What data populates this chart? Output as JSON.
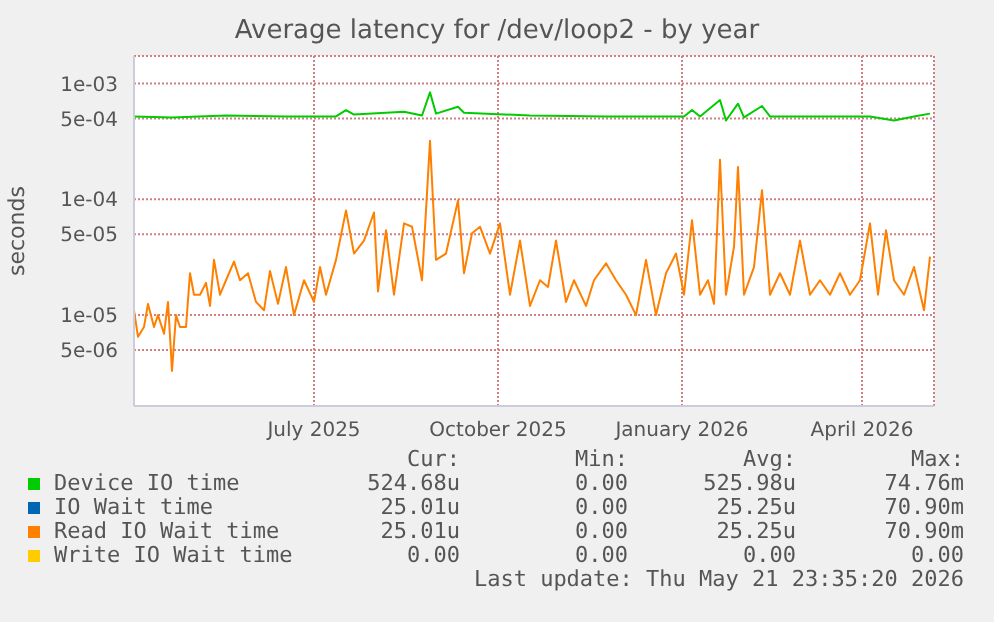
{
  "chart_data": {
    "type": "line",
    "title": "Average latency for /dev/loop2 - by year",
    "ylabel": "seconds",
    "log": true,
    "grid": true,
    "legend": "bottom",
    "marker": "none",
    "line_style": "solid",
    "xlim": [
      "2025-04-17",
      "2026-05-22"
    ],
    "xticks": [
      {
        "value": "2025-07-16",
        "label": "July 2025"
      },
      {
        "value": "2025-10-16",
        "label": "October 2025"
      },
      {
        "value": "2026-01-16",
        "label": "January 2026"
      },
      {
        "value": "2026-04-16",
        "label": "April 2026"
      }
    ],
    "ylim": [
      1.64e-06,
      0.00173
    ],
    "yticks": [
      {
        "value": 5e-06,
        "label": "5e-06"
      },
      {
        "value": 1e-05,
        "label": "1e-05"
      },
      {
        "value": 5e-05,
        "label": "5e-05"
      },
      {
        "value": 0.0001,
        "label": "1e-04"
      },
      {
        "value": 0.0005,
        "label": "5e-04"
      },
      {
        "value": 0.001,
        "label": "1e-03"
      }
    ],
    "series": [
      {
        "name": "Device IO time",
        "color": "#00cc00",
        "x": [
          "2025-04-17",
          "2025-05-06",
          "2025-06-02",
          "2025-07-02",
          "2025-07-27",
          "2025-08-01",
          "2025-08-05",
          "2025-08-30",
          "2025-09-08",
          "2025-09-12",
          "2025-09-15",
          "2025-09-26",
          "2025-09-29",
          "2025-11-01",
          "2025-12-09",
          "2026-01-17",
          "2026-01-21",
          "2026-01-25",
          "2026-02-04",
          "2026-02-07",
          "2026-02-13",
          "2026-02-16",
          "2026-02-25",
          "2026-03-01",
          "2026-04-20",
          "2026-05-02",
          "2026-05-12",
          "2026-05-20"
        ],
        "values": [
          0.00052,
          0.00051,
          0.00053,
          0.00052,
          0.00052,
          0.00059,
          0.00054,
          0.00057,
          0.00053,
          0.00084,
          0.00055,
          0.00063,
          0.00056,
          0.00053,
          0.00052,
          0.00052,
          0.00059,
          0.00052,
          0.00072,
          0.00048,
          0.00067,
          0.00051,
          0.00064,
          0.00052,
          0.00052,
          0.00048,
          0.00052,
          0.00055
        ]
      },
      {
        "name": "IO Wait time",
        "color": "#0066b3"
      },
      {
        "name": "Read IO Wait time",
        "color": "#ff8000",
        "x": [
          "2025-04-17",
          "2025-04-19",
          "2025-04-22",
          "2025-04-24",
          "2025-04-27",
          "2025-04-29",
          "2025-05-02",
          "2025-05-04",
          "2025-05-06",
          "2025-05-08",
          "2025-05-10",
          "2025-05-13",
          "2025-05-15",
          "2025-05-17",
          "2025-05-20",
          "2025-05-23",
          "2025-05-25",
          "2025-05-27",
          "2025-05-30",
          "2025-06-02",
          "2025-06-06",
          "2025-06-09",
          "2025-06-13",
          "2025-06-17",
          "2025-06-21",
          "2025-06-24",
          "2025-06-28",
          "2025-07-02",
          "2025-07-06",
          "2025-07-11",
          "2025-07-16",
          "2025-07-19",
          "2025-07-22",
          "2025-07-27",
          "2025-08-01",
          "2025-08-05",
          "2025-08-10",
          "2025-08-15",
          "2025-08-17",
          "2025-08-21",
          "2025-08-25",
          "2025-08-30",
          "2025-09-03",
          "2025-09-08",
          "2025-09-12",
          "2025-09-15",
          "2025-09-20",
          "2025-09-26",
          "2025-09-29",
          "2025-10-03",
          "2025-10-07",
          "2025-10-12",
          "2025-10-17",
          "2025-10-22",
          "2025-10-27",
          "2025-11-01",
          "2025-11-06",
          "2025-11-10",
          "2025-11-14",
          "2025-11-19",
          "2025-11-23",
          "2025-11-29",
          "2025-12-03",
          "2025-12-09",
          "2025-12-14",
          "2025-12-19",
          "2025-12-24",
          "2025-12-29",
          "2026-01-03",
          "2026-01-08",
          "2026-01-13",
          "2026-01-17",
          "2026-01-21",
          "2026-01-25",
          "2026-01-29",
          "2026-02-01",
          "2026-02-04",
          "2026-02-07",
          "2026-02-11",
          "2026-02-13",
          "2026-02-16",
          "2026-02-21",
          "2026-02-25",
          "2026-03-01",
          "2026-03-06",
          "2026-03-11",
          "2026-03-16",
          "2026-03-21",
          "2026-03-26",
          "2026-03-31",
          "2026-04-05",
          "2026-04-10",
          "2026-04-15",
          "2026-04-20",
          "2026-04-24",
          "2026-04-28",
          "2026-05-02",
          "2026-05-07",
          "2026-05-12",
          "2026-05-17",
          "2026-05-20"
        ],
        "values": [
          1.1e-05,
          6.5e-06,
          7.9e-06,
          1.25e-05,
          7.9e-06,
          1e-05,
          6.9e-06,
          1.3e-05,
          3.3e-06,
          1e-05,
          7.9e-06,
          7.9e-06,
          2.3e-05,
          1.5e-05,
          1.5e-05,
          1.9e-05,
          1.2e-05,
          3e-05,
          1.5e-05,
          2e-05,
          2.9e-05,
          2e-05,
          2.3e-05,
          1.3e-05,
          1.1e-05,
          2.4e-05,
          1.25e-05,
          2.6e-05,
          1e-05,
          2e-05,
          1.3e-05,
          2.6e-05,
          1.5e-05,
          3e-05,
          8e-05,
          3.4e-05,
          4.4e-05,
          7.7e-05,
          1.6e-05,
          5.4e-05,
          1.5e-05,
          6.2e-05,
          5.8e-05,
          2e-05,
          0.00032,
          3e-05,
          3.4e-05,
          9.8e-05,
          2.3e-05,
          5.1e-05,
          5.8e-05,
          3.4e-05,
          6.2e-05,
          1.5e-05,
          4.4e-05,
          1.2e-05,
          2e-05,
          1.75e-05,
          4.4e-05,
          1.3e-05,
          2e-05,
          1.2e-05,
          2e-05,
          2.8e-05,
          2e-05,
          1.5e-05,
          1e-05,
          3e-05,
          1e-05,
          2.3e-05,
          3.4e-05,
          1.5e-05,
          6.6e-05,
          1.5e-05,
          2e-05,
          1.25e-05,
          0.00022,
          1.5e-05,
          3.9e-05,
          0.00019,
          1.5e-05,
          2.6e-05,
          0.00012,
          1.5e-05,
          2.3e-05,
          1.5e-05,
          4.4e-05,
          1.5e-05,
          2e-05,
          1.5e-05,
          2.3e-05,
          1.5e-05,
          2e-05,
          6.2e-05,
          1.5e-05,
          5.4e-05,
          2e-05,
          1.5e-05,
          2.6e-05,
          1.1e-05,
          3.2e-05
        ]
      },
      {
        "name": "Write IO Wait time",
        "color": "#ffcc00"
      }
    ],
    "annotations": [
      "Cur:",
      "Min:",
      "Avg:",
      "Max:",
      "524.68u",
      "0.00",
      "525.98u",
      "74.76m",
      "25.01u",
      "0.00",
      "25.25u",
      "70.90m",
      "25.01u",
      "0.00",
      "25.25u",
      "70.90m",
      "0.00",
      "0.00",
      "0.00",
      "0.00",
      "Last update: Thu May 21 23:35:20 2026"
    ]
  }
}
